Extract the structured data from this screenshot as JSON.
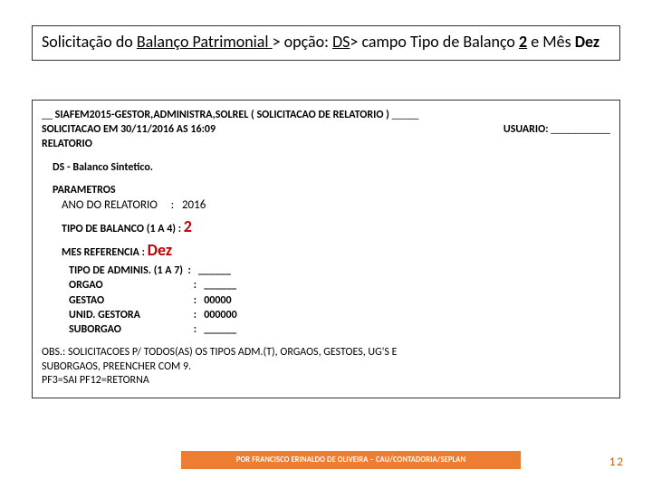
{
  "title": {
    "parts": [
      {
        "text": "Solicitação do ",
        "cls": ""
      },
      {
        "text": "Balanço Patrimonial ",
        "cls": "u"
      },
      {
        "text": "> opção: ",
        "cls": ""
      },
      {
        "text": "DS",
        "cls": "u"
      },
      {
        "text": "> campo Tipo de Balanço ",
        "cls": ""
      },
      {
        "text": "2",
        "cls": "u b"
      },
      {
        "text": " e Mês ",
        "cls": ""
      },
      {
        "text": "Dez",
        "cls": "b"
      }
    ]
  },
  "header": {
    "line1_prefix": "__ ",
    "line1_main": "SIAFEM2015-GESTOR,ADMINISTRA,SOLREL ( SOLICITACAO DE RELATORIO )",
    "line1_suffix": " _____",
    "line2_left": "SOLICITACAO EM 30/11/2016 AS 16:09",
    "line2_right_label": "USUARIO:",
    "line2_right_blank": " ___________",
    "line3": "RELATORIO"
  },
  "ds": "DS - Balanco Sintetico.",
  "params": {
    "heading": "PARAMETROS",
    "ano_label": "ANO DO RELATORIO",
    "ano_value": "2016",
    "tipo_label": "TIPO DE BALANCO (1 A 4) :",
    "tipo_value": "2",
    "mes_label": "MES REFERENCIA  :",
    "mes_value": "Dez",
    "tipo_admin_label": "TIPO DE ADMINIS. (1 A 7)",
    "tipo_admin_value": "______",
    "orgao_label": "ORGAO",
    "orgao_value": "______",
    "gestao_label": "GESTAO",
    "gestao_value": "00000",
    "unid_label": "UNID. GESTORA",
    "unid_value": "000000",
    "suborgao_label": "SUBORGAO",
    "suborgao_value": "______"
  },
  "obs": {
    "line1": "OBS.: SOLICITACOES P/ TODOS(AS) OS TIPOS ADM.(T), ORGAOS, GESTOES, UG'S E",
    "line2": "SUBORGAOS, PREENCHER COM 9.",
    "line3": "PF3=SAI PF12=RETORNA"
  },
  "footer": {
    "text": "POR FRANCISCO ERINALDO DE OLIVEIRA – CAU/CONTADORIA/SEPLAN",
    "bg": "#ed7d31",
    "fg": "#ffffff"
  },
  "page": "12",
  "colors": {
    "accent_red": "#c00000",
    "page_num": "#c55a11",
    "border": "#333333"
  }
}
